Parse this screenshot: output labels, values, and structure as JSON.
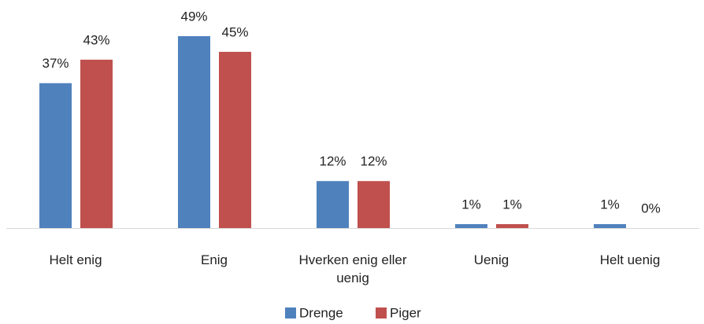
{
  "chart_data": {
    "type": "bar",
    "categories": [
      "Helt enig",
      "Enig",
      "Hverken enig eller uenig",
      "Uenig",
      "Helt uenig"
    ],
    "series": [
      {
        "name": "Drenge",
        "color": "#4f81bd",
        "values": [
          37,
          49,
          12,
          1,
          1
        ],
        "value_labels": [
          "37%",
          "49%",
          "12%",
          "1%",
          "1%"
        ]
      },
      {
        "name": "Piger",
        "color": "#c0504d",
        "values": [
          43,
          45,
          12,
          1,
          0
        ],
        "value_labels": [
          "43%",
          "45%",
          "12%",
          "1%",
          "0%"
        ]
      }
    ],
    "legend": "bottom"
  }
}
